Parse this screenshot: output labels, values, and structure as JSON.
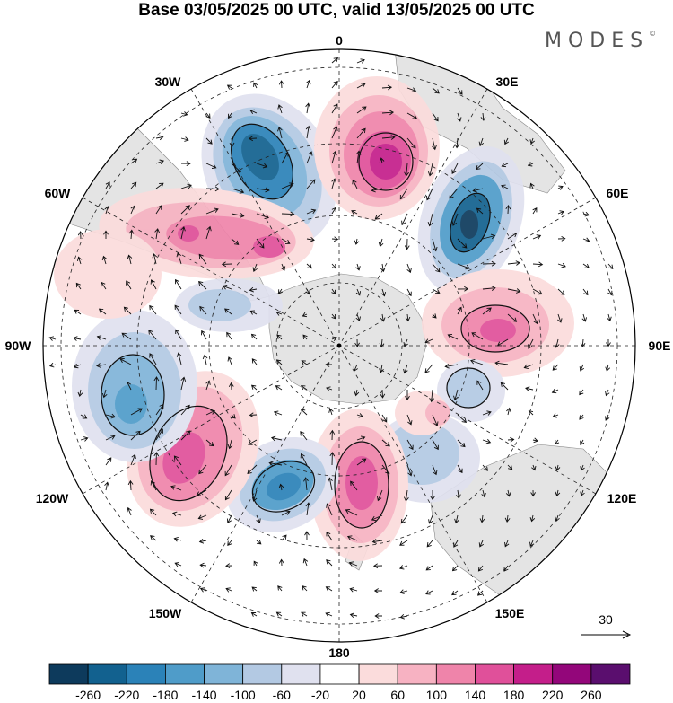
{
  "title": "Base 03/05/2025 00 UTC, valid 13/05/2025 00 UTC",
  "brand": "MODES",
  "brand_mark": "©",
  "longitude_labels": {
    "lon_0": "0",
    "lon_30e": "30E",
    "lon_60e": "60E",
    "lon_90e": "90E",
    "lon_120e": "120E",
    "lon_150e": "150E",
    "lon_180": "180",
    "lon_150w": "150W",
    "lon_120w": "120W",
    "lon_90w": "90W",
    "lon_60w": "60W",
    "lon_30w": "30W"
  },
  "vector_reference": {
    "label": "30",
    "value": 30
  },
  "colorbar": {
    "labels": [
      "-260",
      "-220",
      "-180",
      "-140",
      "-100",
      "-60",
      "-20",
      "20",
      "60",
      "100",
      "140",
      "180",
      "220",
      "260"
    ],
    "colors": [
      "#0d3a5c",
      "#12618f",
      "#2b82b8",
      "#4f9cc9",
      "#7fb4d8",
      "#b3c9e3",
      "#e0e1ef",
      "#ffffff",
      "#fbdcdc",
      "#f7b2c2",
      "#ef84aa",
      "#e0509a",
      "#c41e8a",
      "#93067a",
      "#5a0e6e"
    ]
  },
  "chart_data": {
    "type": "heatmap",
    "title": "Base 03/05/2025 00 UTC, valid 13/05/2025 00 UTC",
    "projection": "south polar stereographic",
    "color_levels": [
      -260,
      -220,
      -180,
      -140,
      -100,
      -60,
      -20,
      20,
      60,
      100,
      140,
      180,
      220,
      260
    ],
    "anomaly_centers": [
      {
        "lon": -28,
        "value": -220
      },
      {
        "lon": 18,
        "value": 220
      },
      {
        "lon": 55,
        "value": -240
      },
      {
        "lon": 92,
        "value": 180
      },
      {
        "lon": 120,
        "value": -100
      },
      {
        "lon": 142,
        "value": -60
      },
      {
        "lon": 178,
        "value": 180
      },
      {
        "lon": -145,
        "value": -180
      },
      {
        "lon": -122,
        "value": 180
      },
      {
        "lon": -95,
        "value": -140
      },
      {
        "lon": -62,
        "value": 140
      }
    ],
    "vector_reference": 30
  }
}
